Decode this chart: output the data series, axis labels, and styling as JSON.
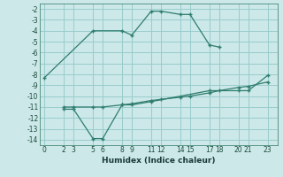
{
  "xlabel": "Humidex (Indice chaleur)",
  "bg_color": "#cce8e8",
  "grid_color": "#99cccc",
  "line_color": "#2e7d6e",
  "xlim": [
    -0.5,
    24
  ],
  "ylim": [
    -14.5,
    -1.5
  ],
  "xticks": [
    0,
    2,
    3,
    5,
    6,
    8,
    9,
    11,
    12,
    14,
    15,
    17,
    18,
    20,
    21,
    23
  ],
  "yticks": [
    -2,
    -3,
    -4,
    -5,
    -6,
    -7,
    -8,
    -9,
    -10,
    -11,
    -12,
    -13,
    -14
  ],
  "lines": [
    {
      "x": [
        0,
        5,
        8,
        9,
        11,
        12,
        14,
        15,
        17,
        18
      ],
      "y": [
        -8.3,
        -4.0,
        -4.0,
        -4.4,
        -2.2,
        -2.2,
        -2.5,
        -2.5,
        -5.3,
        -5.5
      ]
    },
    {
      "x": [
        2,
        3,
        5,
        6,
        8,
        9,
        11,
        17,
        20,
        21,
        23
      ],
      "y": [
        -11.2,
        -11.2,
        -13.9,
        -13.9,
        -10.8,
        -10.8,
        -10.5,
        -9.5,
        -9.5,
        -9.5,
        -8.1
      ]
    },
    {
      "x": [
        2,
        3,
        5,
        6,
        8,
        9,
        11,
        12,
        14,
        15,
        17,
        18,
        20,
        21,
        23
      ],
      "y": [
        -11.0,
        -11.0,
        -11.0,
        -11.0,
        -10.8,
        -10.7,
        -10.4,
        -10.3,
        -10.1,
        -10.0,
        -9.7,
        -9.5,
        -9.2,
        -9.1,
        -8.7
      ]
    }
  ]
}
